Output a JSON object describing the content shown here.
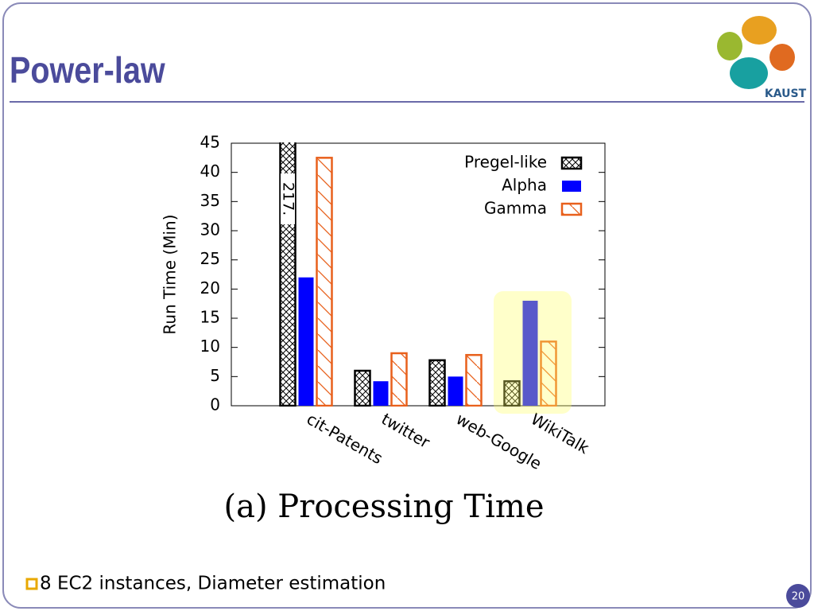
{
  "slide_title": "Power-law",
  "logo_text": "KAUST",
  "caption": "(a) Processing Time",
  "bullet": "8 EC2 instances, Diameter estimation",
  "page_number": "20",
  "chart_data": {
    "type": "bar",
    "ylabel": "Run Time (Min)",
    "categories": [
      "cit-Patents",
      "twitter",
      "web-Google",
      "WikiTalk"
    ],
    "series": [
      {
        "name": "Pregel-like",
        "color": "#000000",
        "pattern": "crosshatch",
        "values": [
          217,
          6,
          7.8,
          4.2
        ],
        "value_labels": [
          "217.",
          null,
          null,
          null
        ]
      },
      {
        "name": "Alpha",
        "color": "#0000ff",
        "pattern": "solid",
        "values": [
          22,
          4.2,
          5,
          18
        ]
      },
      {
        "name": "Gamma",
        "color": "#e8601c",
        "pattern": "diagonal",
        "values": [
          42.5,
          9,
          8.7,
          11
        ]
      }
    ],
    "ylim": [
      0,
      45
    ],
    "yticks": [
      0,
      5,
      10,
      15,
      20,
      25,
      30,
      35,
      40,
      45
    ],
    "legend": "upper right",
    "highlight": "WikiTalk"
  }
}
